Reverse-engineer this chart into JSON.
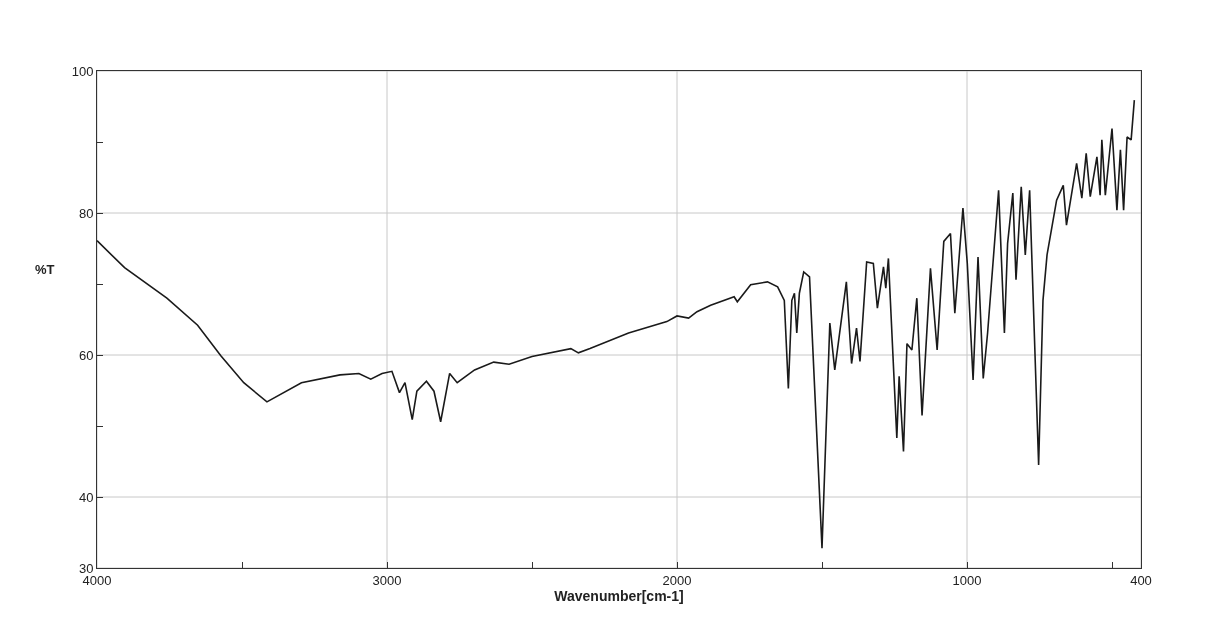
{
  "chart_data": {
    "type": "line",
    "xlabel": "Wavenumber[cm-1]",
    "ylabel": "%T",
    "xlim": [
      4000,
      400
    ],
    "ylim": [
      30,
      100
    ],
    "xticks": [
      4000,
      {
        "value": 3500,
        "label": null
      },
      3000,
      {
        "value": 2500,
        "label": null
      },
      2000,
      {
        "value": 1500,
        "label": null
      },
      1000,
      {
        "value": 500,
        "label": null
      },
      400
    ],
    "yticks": [
      30,
      40,
      {
        "value": 50,
        "label": null
      },
      60,
      {
        "value": 70,
        "label": null
      },
      80,
      {
        "value": 90,
        "label": null
      },
      100
    ],
    "grid": true,
    "series": [
      {
        "color": "#1a1a1a",
        "x": [
          4000,
          3905,
          3759,
          3653,
          3573,
          3494,
          3414,
          3295,
          3162,
          3097,
          3056,
          3017,
          2983,
          2957,
          2938,
          2913,
          2897,
          2864,
          2838,
          2815,
          2784,
          2758,
          2698,
          2632,
          2579,
          2500,
          2366,
          2340,
          2300,
          2167,
          2035,
          2000,
          1960,
          1931,
          1884,
          1803,
          1792,
          1746,
          1688,
          1653,
          1630,
          1616,
          1604,
          1595,
          1587,
          1578,
          1563,
          1543,
          1500,
          1473,
          1456,
          1444,
          1416,
          1398,
          1381,
          1369,
          1346,
          1323,
          1309,
          1288,
          1280,
          1271,
          1242,
          1234,
          1219,
          1207,
          1190,
          1173,
          1155,
          1126,
          1103,
          1080,
          1057,
          1042,
          1014,
          999,
          979,
          962,
          944,
          929,
          891,
          871,
          860,
          842,
          831,
          813,
          799,
          784,
          753,
          738,
          724,
          691,
          668,
          657,
          622,
          604,
          589,
          575,
          552,
          541,
          535,
          523,
          500,
          483,
          471,
          460,
          448,
          434,
          423
        ],
        "values": [
          76.1,
          72.3,
          68.0,
          64.2,
          59.9,
          56.1,
          53.4,
          56.1,
          57.2,
          57.4,
          56.6,
          57.4,
          57.7,
          54.7,
          56.1,
          50.9,
          54.9,
          56.3,
          54.9,
          50.6,
          57.4,
          56.1,
          57.9,
          59.0,
          58.7,
          59.8,
          60.9,
          60.3,
          60.9,
          63.1,
          64.7,
          65.5,
          65.2,
          66.1,
          67.0,
          68.2,
          67.5,
          69.9,
          70.3,
          69.6,
          67.7,
          55.3,
          67.7,
          68.7,
          63.1,
          68.7,
          71.7,
          71.0,
          32.8,
          64.5,
          57.9,
          61.6,
          70.3,
          58.8,
          63.8,
          59.1,
          73.1,
          72.9,
          66.6,
          72.4,
          69.4,
          73.6,
          48.3,
          57.0,
          46.4,
          61.6,
          60.7,
          68.0,
          51.5,
          72.2,
          60.7,
          76.0,
          77.1,
          65.9,
          80.7,
          72.9,
          56.5,
          73.8,
          56.7,
          63.1,
          83.2,
          63.1,
          75.7,
          82.8,
          70.6,
          83.7,
          74.1,
          83.2,
          44.5,
          67.7,
          74.1,
          81.8,
          83.9,
          78.3,
          87.0,
          82.1,
          88.4,
          82.3,
          87.9,
          82.5,
          90.3,
          82.5,
          91.9,
          80.4,
          88.9,
          80.4,
          90.7,
          90.3,
          95.9
        ]
      }
    ]
  }
}
